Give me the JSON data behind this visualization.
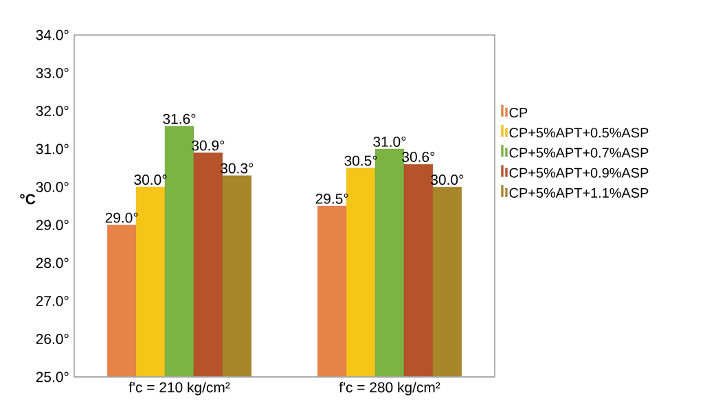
{
  "chart_data": {
    "type": "bar",
    "ylabel": "°C",
    "categories": [
      "f'c = 210 kg/cm²",
      "f'c = 280 kg/cm²"
    ],
    "series": [
      {
        "name": "CP",
        "color": "#e8834a",
        "values": [
          29.0,
          29.5
        ],
        "value_labels": [
          "29.0°",
          "29.5°"
        ]
      },
      {
        "name": "CP+5%APT+0.5%ASP",
        "color": "#f5c518",
        "values": [
          30.0,
          30.5
        ],
        "value_labels": [
          "30.0°",
          "30.5°"
        ]
      },
      {
        "name": "CP+5%APT+0.7%ASP",
        "color": "#7cb342",
        "values": [
          31.6,
          31.0
        ],
        "value_labels": [
          "31.6°",
          "31.0°"
        ]
      },
      {
        "name": "CP+5%APT+0.9%ASP",
        "color": "#b5532a",
        "values": [
          30.9,
          30.6
        ],
        "value_labels": [
          "30.9°",
          "30.6°"
        ]
      },
      {
        "name": "CP+5%APT+1.1%ASP",
        "color": "#a8862a",
        "values": [
          30.3,
          30.0
        ],
        "value_labels": [
          "30.3°",
          "30.0°"
        ]
      }
    ],
    "ylim": [
      25,
      34
    ],
    "yticks": [
      {
        "value": 25,
        "label": "25.0°"
      },
      {
        "value": 26,
        "label": "26.0°"
      },
      {
        "value": 27,
        "label": "27.0°"
      },
      {
        "value": 28,
        "label": "28.0°"
      },
      {
        "value": 29,
        "label": "29.0°"
      },
      {
        "value": 30,
        "label": "30.0°"
      },
      {
        "value": 31,
        "label": "31.0°"
      },
      {
        "value": 32,
        "label": "32.0°"
      },
      {
        "value": 33,
        "label": "33.0°"
      },
      {
        "value": 34,
        "label": "34.0°"
      }
    ],
    "grid": false,
    "legend": "right"
  }
}
